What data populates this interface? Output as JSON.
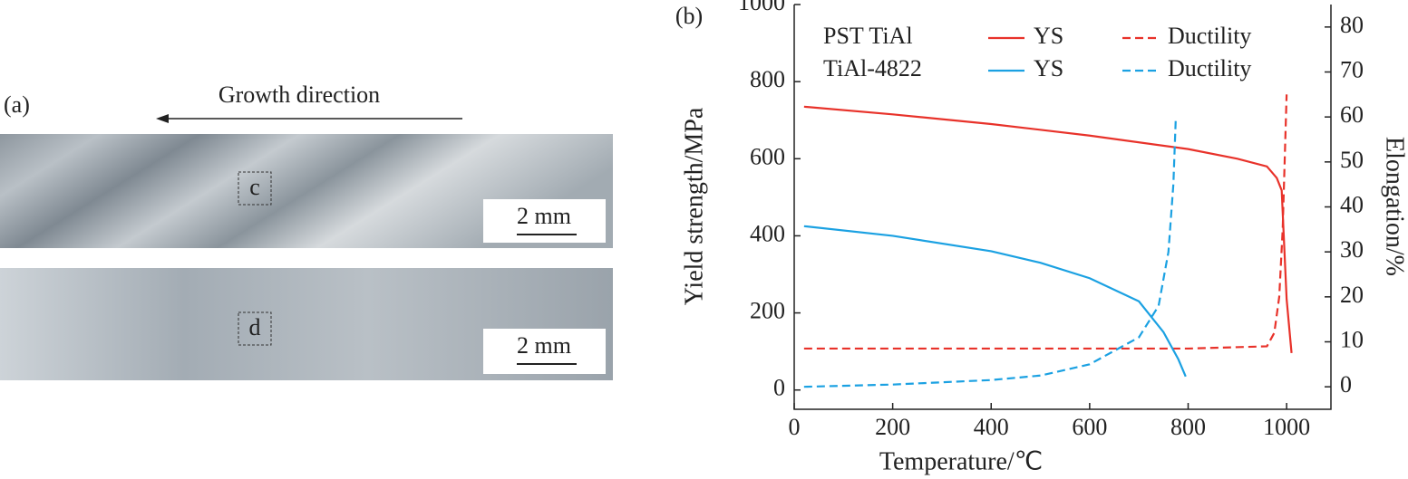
{
  "panel_a": {
    "label": "(a)",
    "arrow_text": "Growth direction",
    "boxes": [
      "c",
      "d"
    ],
    "scale_bars": [
      "2 mm",
      "2 mm"
    ]
  },
  "chart_data": {
    "type": "line",
    "panel_label": "(b)",
    "x_label": "Temperature/℃",
    "y_label": "Yield strength/MPa",
    "y2_label": "Elongation/%",
    "legend_groups": [
      "PST TiAl",
      "TiAl-4822"
    ],
    "xlim": [
      0,
      1090
    ],
    "xticks": [
      0,
      200,
      400,
      600,
      800,
      1000
    ],
    "ylim": [
      -50,
      1000
    ],
    "yticks": [
      0,
      200,
      400,
      600,
      800,
      1000
    ],
    "y2lim": [
      -5,
      85
    ],
    "y2ticks": [
      0,
      10,
      20,
      30,
      40,
      50,
      60,
      70,
      80
    ],
    "series": [
      {
        "name": "YS",
        "color": "#e8322a",
        "dashed": false,
        "x": [
          20,
          200,
          400,
          600,
          800,
          900,
          960,
          980,
          990,
          1000,
          1010
        ],
        "values": [
          735,
          715,
          690,
          660,
          625,
          600,
          580,
          550,
          518,
          236,
          96
        ]
      },
      {
        "name": "Ductility",
        "color": "#e8322a",
        "dashed": true,
        "axis": "y2",
        "x": [
          20,
          200,
          400,
          600,
          800,
          960,
          975,
          985,
          992,
          1000
        ],
        "values": [
          8.5,
          8.5,
          8.5,
          8.5,
          8.5,
          9,
          12,
          20,
          35,
          65
        ]
      },
      {
        "name": "YS",
        "color": "#1ba1e2",
        "dashed": false,
        "x": [
          20,
          200,
          400,
          500,
          600,
          700,
          750,
          780,
          795
        ],
        "values": [
          425,
          400,
          360,
          330,
          290,
          230,
          150,
          80,
          35
        ]
      },
      {
        "name": "Ductility",
        "color": "#1ba1e2",
        "dashed": true,
        "axis": "y2",
        "x": [
          20,
          200,
          400,
          500,
          600,
          700,
          740,
          760,
          770,
          775
        ],
        "values": [
          0,
          0.5,
          1.5,
          2.5,
          5,
          11,
          18,
          30,
          45,
          60
        ]
      }
    ]
  }
}
